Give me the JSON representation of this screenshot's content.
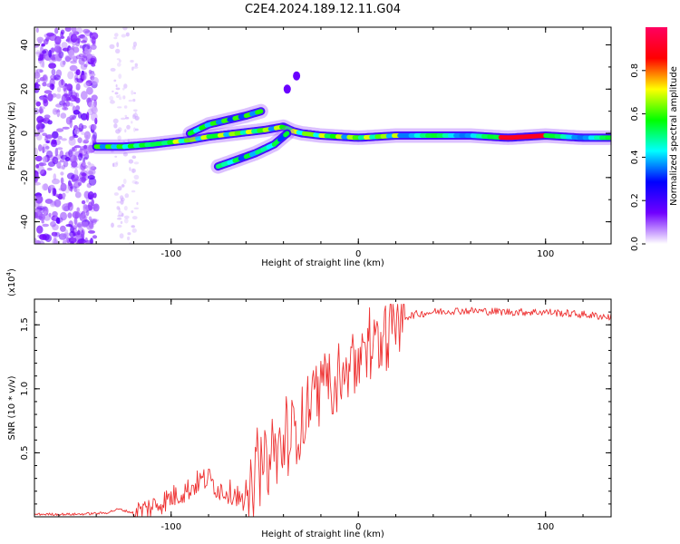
{
  "title": "C2E4.2024.189.12.11.G04",
  "chart_data": [
    {
      "type": "heatmap",
      "name": "spectrogram",
      "xlabel": "Height of straight line (km)",
      "ylabel": "Frequency (Hz)",
      "xlim": [
        -173,
        135
      ],
      "ylim": [
        -50,
        48
      ],
      "xticks": [
        -100,
        0,
        100
      ],
      "xtick_labels": [
        "-100",
        "0",
        "100"
      ],
      "yticks": [
        -40,
        -20,
        0,
        20,
        40
      ],
      "ytick_labels": [
        "-40",
        "-20",
        "0",
        "20",
        "40"
      ],
      "colorbar": {
        "label": "Normalized spectral amplitude",
        "range": [
          0,
          1
        ],
        "ticks": [
          0.0,
          0.2,
          0.4,
          0.6,
          0.8
        ],
        "tick_labels": [
          "0.0",
          "0.2",
          "0.4",
          "0.6",
          "0.8"
        ],
        "colors": [
          "#ffffff",
          "#7000ff",
          "#0000ff",
          "#00ffff",
          "#00ff00",
          "#ffff00",
          "#ff0000",
          "#ff0060"
        ]
      },
      "main_trace": {
        "x": [
          -140,
          -125,
          -110,
          -100,
          -90,
          -80,
          -70,
          -60,
          -50,
          -40,
          -35,
          -30,
          -20,
          -10,
          0,
          10,
          20,
          40,
          60,
          80,
          100,
          120,
          135
        ],
        "freq": [
          -6,
          -6,
          -5,
          -4,
          -3,
          -1.5,
          -0.5,
          0.5,
          1.5,
          3,
          1,
          0,
          -1,
          -1.5,
          -2,
          -1.5,
          -1,
          -1,
          -1,
          -2,
          -1,
          -2,
          -2
        ]
      },
      "upper_branch": {
        "x": [
          -90,
          -80,
          -70,
          -60,
          -52
        ],
        "freq": [
          0,
          4,
          6,
          8,
          10
        ]
      },
      "lower_branch": {
        "x": [
          -75,
          -65,
          -55,
          -45,
          -38
        ],
        "freq": [
          -15,
          -12,
          -9,
          -5,
          0
        ]
      },
      "isolated_blobs": [
        {
          "x": -33,
          "freq": 26
        },
        {
          "x": -38,
          "freq": 20
        }
      ]
    },
    {
      "type": "line",
      "name": "snr",
      "xlabel": "Height of straight line (km)",
      "ylabel": "SNR (10 * v/v)",
      "y_multiplier": "(x10",
      "y_multiplier_exponent": "4",
      "y_multiplier_close": ")",
      "xlim": [
        -173,
        135
      ],
      "ylim": [
        0,
        1.7
      ],
      "xticks": [
        -100,
        0,
        100
      ],
      "xtick_labels": [
        "-100",
        "0",
        "100"
      ],
      "yticks": [
        0.5,
        1.0,
        1.5
      ],
      "ytick_labels": [
        "0.5",
        "1.0",
        "1.5"
      ],
      "series": [
        {
          "name": "SNR",
          "color": "#ee3333",
          "x": [
            -173,
            -150,
            -135,
            -128,
            -120,
            -110,
            -100,
            -90,
            -85,
            -80,
            -75,
            -70,
            -65,
            -60,
            -55,
            -50,
            -45,
            -40,
            -35,
            -30,
            -25,
            -20,
            -15,
            -10,
            -5,
            0,
            5,
            10,
            15,
            20,
            25,
            30,
            40,
            50,
            60,
            80,
            100,
            120,
            135
          ],
          "y": [
            0.02,
            0.02,
            0.03,
            0.06,
            0.03,
            0.08,
            0.15,
            0.22,
            0.28,
            0.3,
            0.22,
            0.2,
            0.18,
            0.05,
            0.3,
            0.4,
            0.48,
            0.55,
            0.65,
            0.75,
            0.9,
            1.0,
            1.05,
            1.1,
            1.15,
            1.2,
            1.25,
            1.35,
            1.42,
            1.5,
            1.56,
            1.58,
            1.6,
            1.61,
            1.61,
            1.6,
            1.6,
            1.58,
            1.56
          ]
        }
      ]
    }
  ]
}
